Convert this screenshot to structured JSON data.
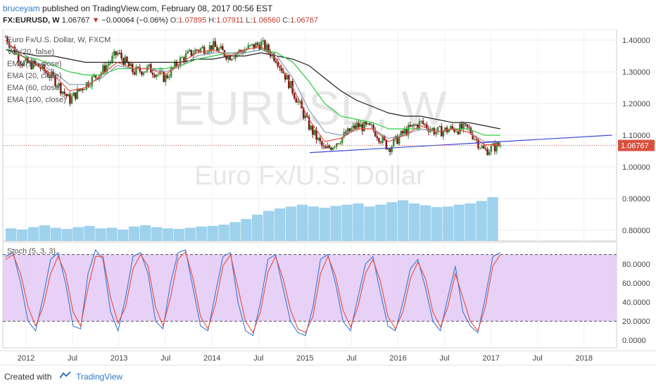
{
  "header": {
    "author": "bruceyam",
    "published": " published on TradingView.com, February 08, 2017 00:56 EST",
    "symbol": "FX:EURUSD, W",
    "price": "1.06767",
    "change_arrow": "▼",
    "change": "−0.00064 (−0.06%)",
    "o_label": "O:",
    "o_value": "1.07895",
    "h_label": "H:",
    "h_value": "1.07911",
    "l_label": "L:",
    "l_value": "1.06560",
    "c_label": "C:",
    "c_value": "1.06767"
  },
  "legend": [
    "Euro Fx/U.S. Dollar, W, FXCM",
    "Vol (20, false)",
    "EMA (10, close)",
    "EMA (20, close)",
    "EMA (60, close)",
    "EMA (100, close)"
  ],
  "watermark": {
    "symbol": "EURUSD, W",
    "name": "Euro Fx/U.S. Dollar"
  },
  "stoch_label": "Stoch (5, 3, 3)",
  "footer": {
    "created_with": "Created with",
    "brand": "TradingView"
  },
  "colors": {
    "candle_up": "#3a8a3a",
    "candle_down": "#7a1f1f",
    "ema10": "#e74c3c",
    "ema20": "#8a9ab5",
    "ema60": "#2ecc40",
    "ema100": "#222222",
    "trendline": "#3b4bd8",
    "price_label_bg": "#d9503f",
    "volume": "#7fc3e6",
    "stoch_k": "#3b78d8",
    "stoch_d": "#e74c3c",
    "stoch_band": "#e3c9f5"
  },
  "chart_data": [
    {
      "type": "candlestick",
      "title": "Euro Fx/U.S. Dollar, W, FXCM",
      "x_ticks": [
        "2012",
        "Jul",
        "2013",
        "Jul",
        "2014",
        "Jul",
        "2015",
        "Jul",
        "2016",
        "Jul",
        "2017",
        "Jul",
        "2018"
      ],
      "y_ticks": [
        "1.40000",
        "1.30000",
        "1.20000",
        "1.10000",
        "1.00000",
        "0.90000",
        "0.80000"
      ],
      "ylim": [
        0.78,
        1.42
      ],
      "last_price": "1.06767",
      "last_price_value": 1.06767,
      "price_path": {
        "t": [
          0,
          2,
          4,
          6,
          8,
          10,
          12,
          14,
          16,
          18,
          20,
          22,
          24,
          26,
          28,
          30,
          32,
          34,
          36,
          38,
          40,
          42,
          44,
          46,
          48,
          50,
          52,
          54,
          56,
          58,
          60,
          62
        ],
        "close": [
          1.41,
          1.33,
          1.32,
          1.28,
          1.21,
          1.26,
          1.3,
          1.36,
          1.3,
          1.31,
          1.28,
          1.34,
          1.37,
          1.38,
          1.35,
          1.37,
          1.39,
          1.34,
          1.24,
          1.13,
          1.05,
          1.09,
          1.13,
          1.12,
          1.06,
          1.11,
          1.14,
          1.11,
          1.12,
          1.12,
          1.05,
          1.07
        ]
      },
      "ema10": [
        1.4,
        1.35,
        1.32,
        1.29,
        1.24,
        1.25,
        1.29,
        1.33,
        1.31,
        1.31,
        1.29,
        1.33,
        1.36,
        1.37,
        1.35,
        1.37,
        1.38,
        1.34,
        1.25,
        1.15,
        1.08,
        1.09,
        1.12,
        1.12,
        1.08,
        1.1,
        1.13,
        1.11,
        1.12,
        1.11,
        1.07,
        1.07
      ],
      "ema20": [
        1.39,
        1.36,
        1.33,
        1.3,
        1.26,
        1.26,
        1.28,
        1.32,
        1.31,
        1.31,
        1.3,
        1.32,
        1.35,
        1.36,
        1.36,
        1.36,
        1.37,
        1.35,
        1.28,
        1.18,
        1.11,
        1.1,
        1.12,
        1.12,
        1.09,
        1.1,
        1.12,
        1.11,
        1.12,
        1.11,
        1.08,
        1.08
      ],
      "ema60": [
        1.37,
        1.35,
        1.34,
        1.32,
        1.3,
        1.29,
        1.29,
        1.31,
        1.31,
        1.31,
        1.31,
        1.32,
        1.34,
        1.35,
        1.36,
        1.36,
        1.37,
        1.36,
        1.33,
        1.27,
        1.2,
        1.16,
        1.15,
        1.14,
        1.12,
        1.12,
        1.12,
        1.11,
        1.12,
        1.12,
        1.1,
        1.1
      ],
      "ema100": [
        1.37,
        1.36,
        1.35,
        1.35,
        1.34,
        1.33,
        1.33,
        1.33,
        1.33,
        1.33,
        1.33,
        1.33,
        1.34,
        1.34,
        1.35,
        1.35,
        1.36,
        1.35,
        1.34,
        1.32,
        1.28,
        1.24,
        1.21,
        1.19,
        1.17,
        1.16,
        1.16,
        1.15,
        1.14,
        1.14,
        1.13,
        1.12
      ],
      "trendline": {
        "x": [
          2015.05,
          2018.3
        ],
        "y": [
          1.045,
          1.1
        ]
      }
    },
    {
      "type": "bar",
      "title": "Vol (20, false)",
      "note": "volume histogram along bottom of price pane",
      "values": [
        20,
        18,
        22,
        25,
        21,
        19,
        22,
        24,
        20,
        21,
        18,
        23,
        25,
        22,
        20,
        19,
        21,
        23,
        24,
        26,
        30,
        35,
        42,
        48,
        52,
        55,
        58,
        55,
        53,
        56,
        58,
        60,
        55,
        58,
        62,
        65,
        60,
        57,
        54,
        55,
        58,
        60,
        64,
        70
      ]
    },
    {
      "type": "line",
      "title": "Stoch (5, 3, 3)",
      "y_ticks": [
        "80.0000",
        "60.0000",
        "40.0000",
        "20.0000",
        "0.0000"
      ],
      "ylim": [
        -5,
        100
      ],
      "bands": [
        20,
        90
      ],
      "series": [
        {
          "name": "%K",
          "values": [
            88,
            92,
            60,
            20,
            10,
            45,
            85,
            92,
            60,
            15,
            12,
            70,
            95,
            85,
            30,
            10,
            45,
            88,
            92,
            70,
            20,
            12,
            60,
            92,
            95,
            55,
            15,
            10,
            50,
            88,
            92,
            40,
            10,
            5,
            40,
            85,
            90,
            55,
            20,
            8,
            5,
            35,
            85,
            90,
            60,
            20,
            10,
            45,
            80,
            88,
            50,
            15,
            10,
            40,
            75,
            85,
            55,
            20,
            10,
            45,
            78,
            30,
            15,
            8,
            45,
            88,
            92
          ]
        },
        {
          "name": "%D",
          "values": [
            85,
            90,
            70,
            35,
            15,
            35,
            70,
            88,
            70,
            30,
            15,
            55,
            88,
            88,
            45,
            18,
            35,
            75,
            90,
            78,
            35,
            15,
            45,
            85,
            93,
            65,
            25,
            12,
            38,
            78,
            90,
            55,
            20,
            8,
            30,
            72,
            88,
            65,
            32,
            12,
            8,
            25,
            70,
            88,
            68,
            32,
            14,
            35,
            70,
            85,
            62,
            25,
            12,
            30,
            65,
            82,
            65,
            30,
            14,
            35,
            70,
            45,
            20,
            10,
            35,
            78,
            90
          ]
        }
      ]
    }
  ]
}
